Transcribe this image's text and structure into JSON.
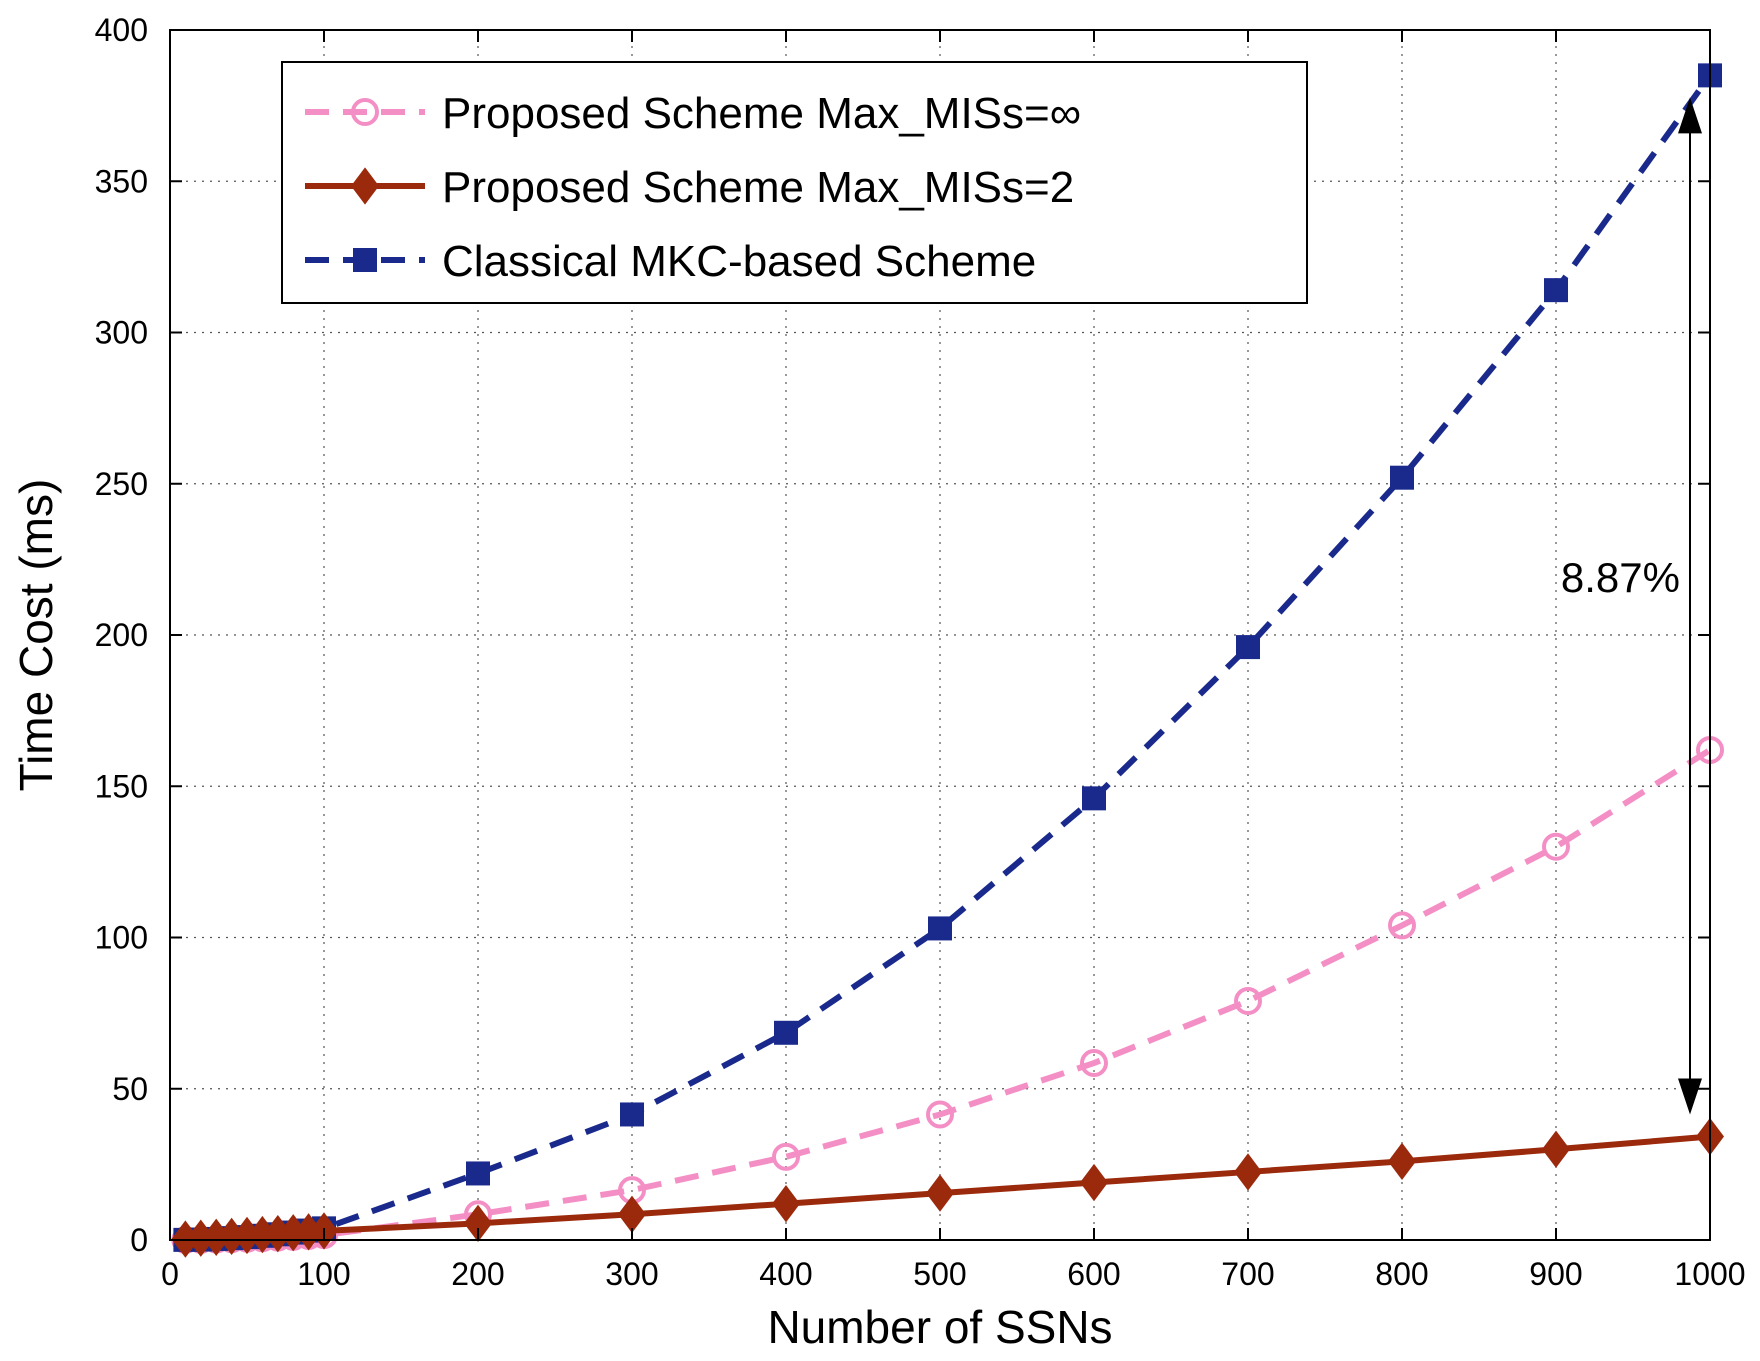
{
  "chart_data": {
    "type": "line",
    "title": "",
    "xlabel": "Number of SSNs",
    "ylabel": "Time Cost (ms)",
    "xlim": [
      0,
      1000
    ],
    "ylim": [
      0,
      400
    ],
    "xticks": [
      0,
      100,
      200,
      300,
      400,
      500,
      600,
      700,
      800,
      900,
      1000
    ],
    "yticks": [
      0,
      50,
      100,
      150,
      200,
      250,
      300,
      350,
      400
    ],
    "grid": true,
    "legend_position": "top-left",
    "x": [
      10,
      20,
      30,
      40,
      50,
      60,
      70,
      80,
      90,
      100,
      200,
      300,
      400,
      500,
      600,
      700,
      800,
      900,
      1000
    ],
    "series": [
      {
        "name": "Proposed Scheme Max_MISs=∞",
        "color": "#f48fc6",
        "line_style": "dashed",
        "marker": "circle",
        "values": [
          0.02,
          0.06,
          0.15,
          0.26,
          0.41,
          0.58,
          0.79,
          1.04,
          1.31,
          1.62,
          8.5,
          16.5,
          27.5,
          41.5,
          58.5,
          79,
          104,
          130,
          162
        ]
      },
      {
        "name": "Proposed Scheme Max_MISs=2",
        "color": "#9b2a0c",
        "line_style": "solid",
        "marker": "diamond",
        "values": [
          0.3,
          0.6,
          0.9,
          1.2,
          1.5,
          1.8,
          2.1,
          2.4,
          2.7,
          3.0,
          5.5,
          8.5,
          12,
          15.5,
          19,
          22.5,
          26,
          30,
          34.2
        ]
      },
      {
        "name": "Classical MKC-based Scheme",
        "color": "#1a2a8c",
        "line_style": "dashed",
        "marker": "square",
        "values": [
          0.04,
          0.15,
          0.35,
          0.62,
          0.96,
          1.39,
          1.89,
          2.46,
          3.12,
          3.85,
          22,
          41.5,
          68.5,
          103,
          146,
          196,
          252,
          314,
          385
        ]
      }
    ],
    "annotations": [
      {
        "text": "8.87%",
        "arrow_x": 1000,
        "arrow_from": 385,
        "arrow_to": 34.2
      }
    ]
  }
}
